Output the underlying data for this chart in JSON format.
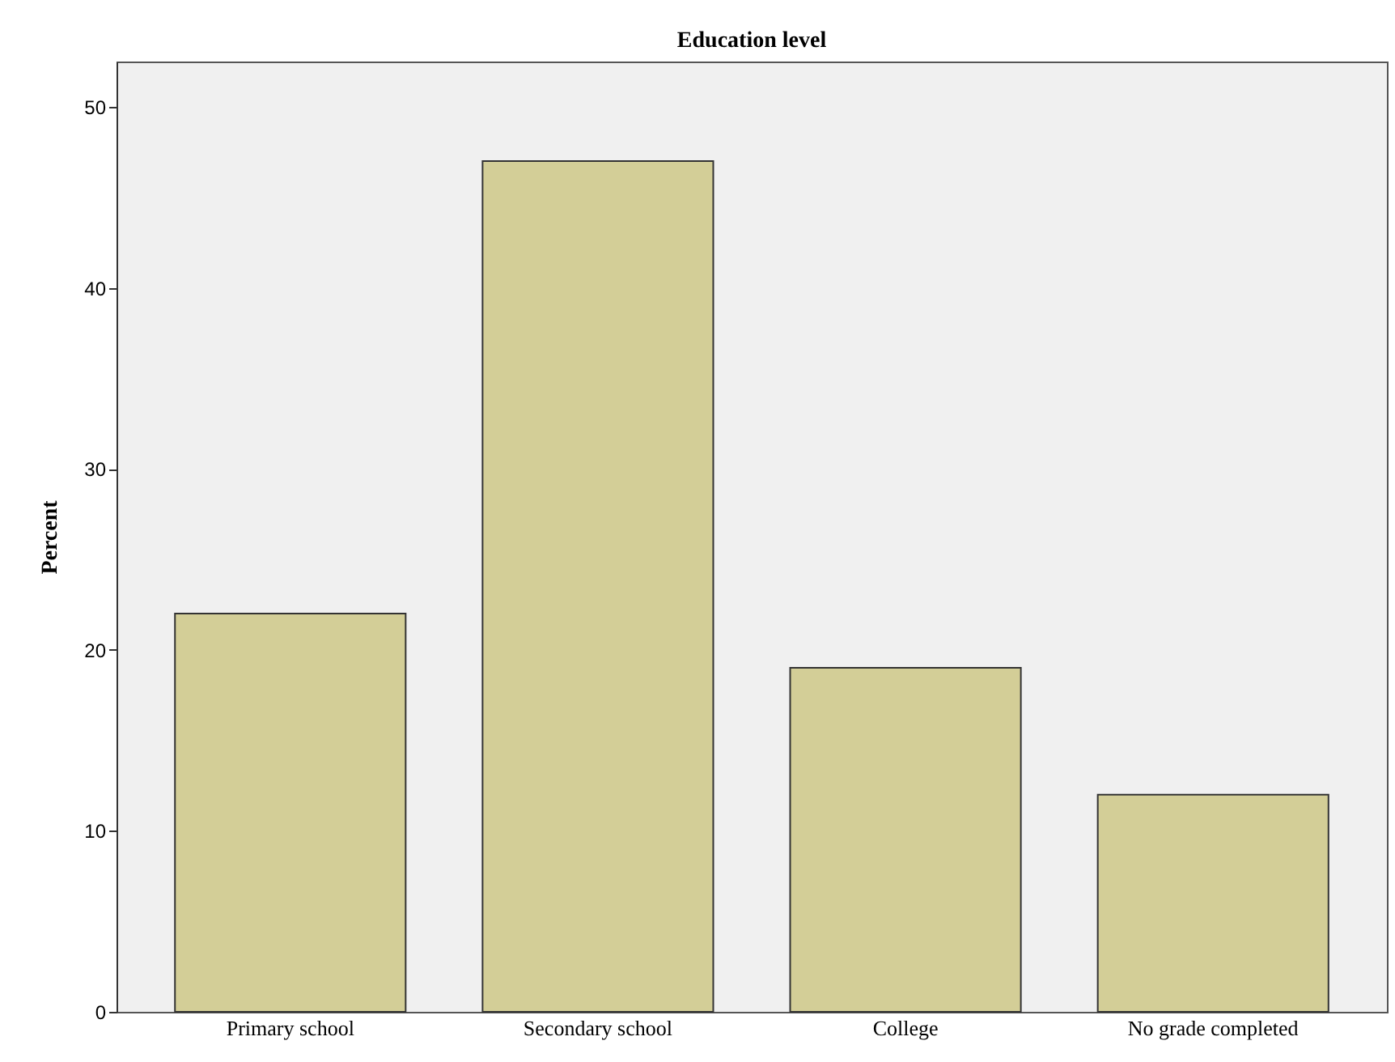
{
  "chart_data": {
    "type": "bar",
    "title": "Education level",
    "ylabel": "Percent",
    "categories": [
      "Primary school",
      "Secondary school",
      "College",
      "No grade completed"
    ],
    "values": [
      22,
      47,
      19,
      12
    ],
    "color": "#d3ce97",
    "ylim": [
      0,
      52.5
    ],
    "yticks": [
      0,
      10,
      20,
      30,
      40,
      50
    ],
    "grid": false
  }
}
